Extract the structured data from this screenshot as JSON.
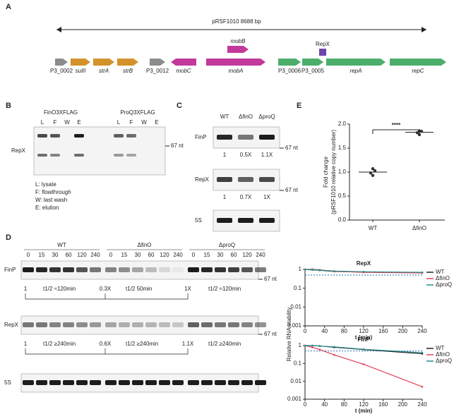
{
  "panel_a": {
    "label": "A",
    "plasmid": "pRSF1010 8688 bp",
    "genes": [
      {
        "name": "P3_0002",
        "color": "#8c8c8c"
      },
      {
        "name": "sulII",
        "color": "#d4922a"
      },
      {
        "name": "strA",
        "color": "#d4922a"
      },
      {
        "name": "strB",
        "color": "#d4922a"
      },
      {
        "name": "P3_0012",
        "color": "#8c8c8c"
      },
      {
        "name": "mobC",
        "color": "#c2399b"
      },
      {
        "name": "mobA",
        "color": "#c2399b"
      },
      {
        "name": "mobB",
        "color": "#c2399b"
      },
      {
        "name": "P3_0006",
        "color": "#4cae6a"
      },
      {
        "name": "P3_0005",
        "color": "#4cae6a"
      },
      {
        "name": "RepX",
        "color": "#6f45a8"
      },
      {
        "name": "repA",
        "color": "#4cae6a"
      },
      {
        "name": "repC",
        "color": "#4cae6a"
      }
    ]
  },
  "panel_b": {
    "label": "B",
    "groups": [
      "FinO3XFLAG",
      "ProQ3XFLAG"
    ],
    "lanes": [
      "L",
      "F",
      "W",
      "E"
    ],
    "probe": "RepX",
    "marker": "67 nt",
    "legend": [
      "L: lysate",
      "F: flowthrough",
      "W: last wash",
      "E: elution"
    ]
  },
  "panel_c": {
    "label": "C",
    "strains": [
      "WT",
      "ΔfinO",
      "ΔproQ"
    ],
    "blots": [
      {
        "probe": "FinP",
        "marker": "67 nt",
        "ratios": [
          "1",
          "0.5X",
          "1.1X"
        ]
      },
      {
        "probe": "RepX",
        "marker": "67 nt",
        "ratios": [
          "1",
          "0.7X",
          "1X"
        ]
      },
      {
        "probe": "5S"
      }
    ]
  },
  "panel_d": {
    "label": "D",
    "groups": [
      "WT",
      "ΔfinO",
      "ΔproQ"
    ],
    "time_points": [
      "0",
      "15",
      "30",
      "60",
      "120",
      "240"
    ],
    "blots": [
      {
        "probe": "FinP",
        "marker": "67 nt",
        "ratios": [
          "1",
          "0.3X",
          "1X"
        ],
        "half_lives": [
          "t1/2 ≈120min",
          "t1/2 50min",
          "t1/2 ≈120min"
        ]
      },
      {
        "probe": "RepX",
        "marker": "67 nt",
        "ratios": [
          "1",
          "0.6X",
          "1.1X"
        ],
        "half_lives": [
          "t1/2 ≥240min",
          "t1/2 ≥240min",
          "t1/2 ≥240min"
        ]
      },
      {
        "probe": "5S"
      }
    ],
    "stability": {
      "y_label": "Relative RNA stability",
      "x_label": "t (min)",
      "log_y": true,
      "x": [
        0,
        15,
        30,
        60,
        120,
        240
      ],
      "xlim": [
        0,
        240
      ],
      "xticks": [
        0,
        40,
        80,
        120,
        160,
        200,
        240
      ],
      "ylim": [
        0.001,
        1
      ],
      "yticks": [
        0.001,
        0.01,
        0.1,
        1
      ],
      "reference": 0.5,
      "charts": [
        {
          "title": "RepX",
          "series": [
            {
              "name": "WT",
              "color": "#222222",
              "values": [
                1,
                0.95,
                0.9,
                0.78,
                0.72,
                0.68
              ]
            },
            {
              "name": "ΔfinO",
              "color": "#e0405a",
              "values": [
                1,
                1.02,
                0.95,
                0.8,
                0.7,
                0.65
              ]
            },
            {
              "name": "ΔproQ",
              "color": "#2a8c8c",
              "values": [
                1,
                0.97,
                0.92,
                0.82,
                0.75,
                0.7
              ]
            }
          ]
        },
        {
          "title": "FinP",
          "series": [
            {
              "name": "WT",
              "color": "#222222",
              "values": [
                1,
                1,
                0.95,
                0.8,
                0.6,
                0.35
              ]
            },
            {
              "name": "ΔfinO",
              "color": "#e0405a",
              "values": [
                1,
                0.8,
                0.6,
                0.3,
                0.09,
                0.005
              ]
            },
            {
              "name": "ΔproQ",
              "color": "#2a8c8c",
              "values": [
                1,
                1,
                0.95,
                0.85,
                0.62,
                0.4
              ]
            }
          ]
        }
      ]
    }
  },
  "panel_e": {
    "label": "E",
    "y_label": "Fold change",
    "y_sublabel": "(pRSF1010 relative copy number)",
    "categories": [
      "WT",
      "ΔfinO"
    ],
    "values": [
      [
        0.93,
        0.98,
        1.03,
        1.07
      ],
      [
        1.78,
        1.82,
        1.85,
        1.86
      ]
    ],
    "means": [
      1.0,
      1.83
    ],
    "significance": "****",
    "color": "#333333",
    "ylim": [
      0,
      2.0
    ],
    "yticks": [
      {
        "value": 0,
        "label": "0.0"
      },
      {
        "value": 0.5,
        "label": "0.5"
      },
      {
        "value": 1,
        "label": "1.0"
      },
      {
        "value": 1.5,
        "label": "1.5"
      },
      {
        "value": 2,
        "label": "2.0"
      }
    ]
  }
}
